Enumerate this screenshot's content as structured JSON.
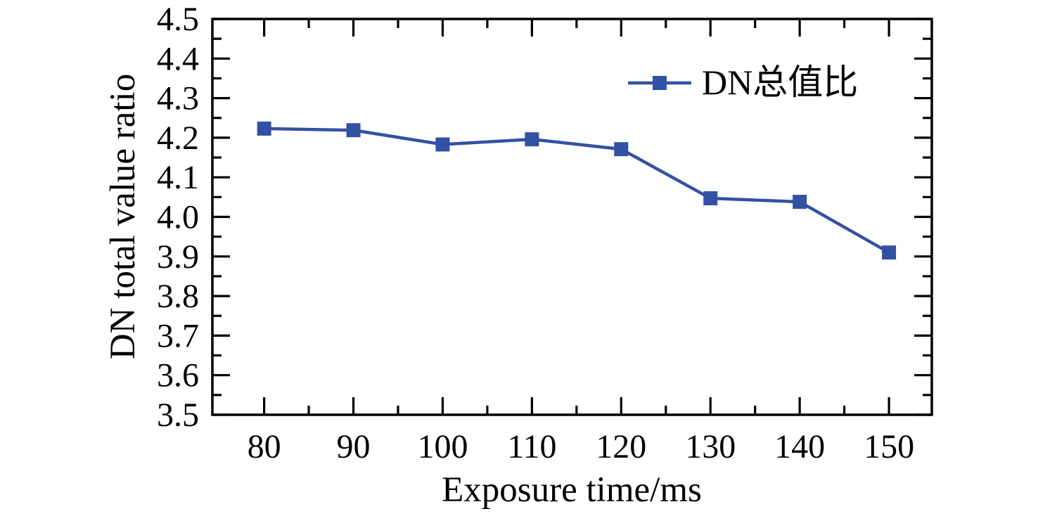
{
  "chart_data": {
    "type": "line",
    "title": "",
    "xlabel": "Exposure time/ms",
    "ylabel": "DN total value ratio",
    "x": [
      80,
      90,
      100,
      110,
      120,
      130,
      140,
      150
    ],
    "series": [
      {
        "name": "DN总值比",
        "values": [
          4.223,
          4.219,
          4.183,
          4.196,
          4.171,
          4.047,
          4.038,
          3.91
        ],
        "marker": "square"
      }
    ],
    "legend": [
      {
        "label": "DN总值比",
        "marker": "square"
      }
    ],
    "legend_position": "upper right inside, no border",
    "xlim": [
      74.2,
      154.8
    ],
    "ylim": [
      3.5,
      4.5
    ],
    "x_major_ticks": [
      80,
      90,
      100,
      110,
      120,
      130,
      140,
      150
    ],
    "x_tick_labels": [
      "80",
      "90",
      "100",
      "110",
      "120",
      "130",
      "140",
      "150"
    ],
    "x_minor_ticks": [
      85,
      95,
      105,
      115,
      125,
      135,
      145
    ],
    "y_major_ticks": [
      3.5,
      3.6,
      3.7,
      3.8,
      3.9,
      4.0,
      4.1,
      4.2,
      4.3,
      4.4,
      4.5
    ],
    "y_tick_labels": [
      "3.5",
      "3.6",
      "3.7",
      "3.8",
      "3.9",
      "4.0",
      "4.1",
      "4.2",
      "4.3",
      "4.4",
      "4.5"
    ],
    "y_minor_ticks": [
      3.55,
      3.65,
      3.75,
      3.85,
      3.95,
      4.05,
      4.15,
      4.25,
      4.35,
      4.45
    ],
    "grid": false,
    "tick_direction": "in, mirrored on all four sides",
    "colors": {
      "line": "#3351a3",
      "axis": "#000000",
      "text": "#000000",
      "background": "#ffffff"
    }
  }
}
